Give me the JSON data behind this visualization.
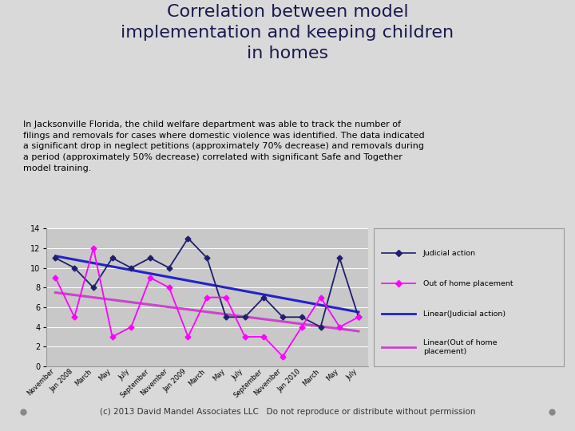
{
  "title": "Correlation between model\nimplementation and keeping children\nin homes",
  "subtitle": "In Jacksonville Florida, the child welfare department was able to track the number of\nfilings and removals for cases where domestic violence was identified. The data indicated\na significant drop in neglect petitions (approximately 70% decrease) and removals during\na period (approximately 50% decrease) correlated with significant Safe and Together\nmodel training.",
  "footer": "(c) 2013 David Mandel Associates LLC   Do not reproduce or distribute without permission",
  "x_labels": [
    "November",
    "Jan 2008",
    "March",
    "May",
    "July",
    "September",
    "November",
    "Jan 2009",
    "March",
    "May",
    "July",
    "September",
    "November",
    "Jan 2010",
    "March",
    "May",
    "July"
  ],
  "judicial_action": [
    11,
    10,
    8,
    11,
    10,
    11,
    10,
    13,
    11,
    5,
    5,
    7,
    5,
    5,
    4,
    11,
    5
  ],
  "out_of_home": [
    9,
    5,
    12,
    3,
    4,
    9,
    8,
    3,
    7,
    7,
    3,
    3,
    1,
    4,
    7,
    4,
    5
  ],
  "background_color": "#c8c8c8",
  "outer_bg": "#d9d9d9",
  "judicial_color": "#1f1f6e",
  "out_color": "#ff00ff",
  "trend_judicial_color": "#2222cc",
  "trend_out_color": "#cc44cc",
  "ylim": [
    0,
    14
  ],
  "yticks": [
    0,
    2,
    4,
    6,
    8,
    10,
    12,
    14
  ],
  "title_color": "#1a1a4e",
  "title_fontsize": 16,
  "subtitle_fontsize": 8,
  "footer_fontsize": 7.5
}
